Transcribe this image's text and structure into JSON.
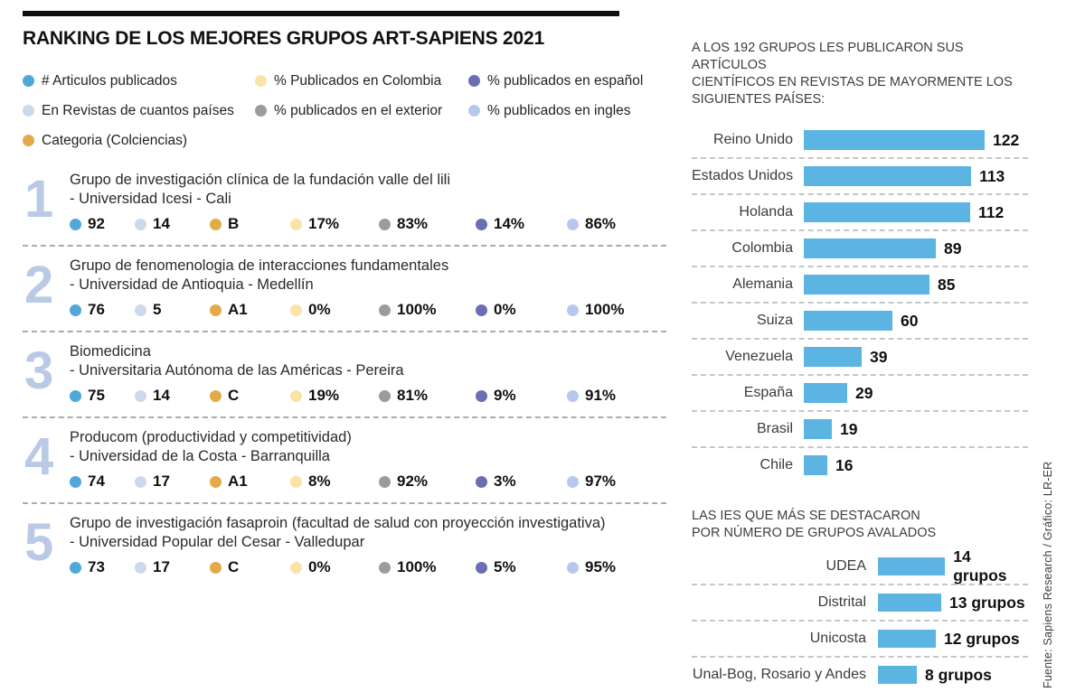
{
  "page_title": "RANKING DE LOS MEJORES GRUPOS ART-SAPIENS 2021",
  "colors": {
    "bar_blue": "#5bb4e2",
    "rank_number_blue": "#b9c9e6",
    "top_rule_black": "#101010"
  },
  "legend": {
    "columns": [
      [
        {
          "label": "# Articulos publicados",
          "color": "#4fa7da"
        },
        {
          "label": "En Revistas de cuantos países",
          "color": "#ccd9ec"
        },
        {
          "label": "Categoria (Colciencias)",
          "color": "#e2ab47"
        }
      ],
      [
        {
          "label": "% Publicados en Colombia",
          "color": "#fae3a7"
        },
        {
          "label": "% publicados en el exterior",
          "color": "#9b9b9d"
        }
      ],
      [
        {
          "label": "% publicados en español",
          "color": "#6a6eb3"
        },
        {
          "label": "% publicados en ingles",
          "color": "#b7c8ee"
        }
      ]
    ]
  },
  "chart_data": [
    {
      "id": "countries",
      "type": "bar",
      "orientation": "horizontal",
      "title": "A LOS 192 GRUPOS LES PUBLICARON SUS ARTÍCULOS CIENTÍFICOS EN REVISTAS DE MAYORMENTE LOS SIGUIENTES PAÍSES:",
      "title_lines": [
        "A LOS 192 GRUPOS LES PUBLICARON SUS ARTÍCULOS",
        "CIENTÍFICOS EN REVISTAS DE MAYORMENTE LOS",
        "SIGUIENTES PAÍSES:"
      ],
      "categories": [
        "Reino Unido",
        "Estados Unidos",
        "Holanda",
        "Colombia",
        "Alemania",
        "Suiza",
        "Venezuela",
        "España",
        "Brasil",
        "Chile"
      ],
      "values": [
        122,
        113,
        112,
        89,
        85,
        60,
        39,
        29,
        19,
        16
      ],
      "xlim": [
        0,
        122
      ],
      "grid": false,
      "legend_position": "none",
      "bar_color": "#5bb4e2"
    },
    {
      "id": "ies",
      "type": "bar",
      "orientation": "horizontal",
      "title": "LAS IES QUE MÁS SE DESTACARON POR NÚMERO DE GRUPOS AVALADOS",
      "title_lines": [
        "LAS IES QUE MÁS SE DESTACARON",
        "POR NÚMERO DE GRUPOS AVALADOS"
      ],
      "categories": [
        "UDEA",
        "Distrital",
        "Unicosta",
        "Unal-Bog, Rosario y Andes"
      ],
      "values": [
        14,
        13,
        12,
        8
      ],
      "value_labels": [
        "14 grupos",
        "13 grupos",
        "12 grupos",
        "8 grupos"
      ],
      "xlim": [
        0,
        14
      ],
      "grid": false,
      "legend_position": "none",
      "bar_color": "#5bb4e2"
    },
    {
      "id": "ranking",
      "type": "table",
      "title": "RANKING DE LOS MEJORES GRUPOS ART-SAPIENS 2021",
      "columns": [
        "# Articulos publicados",
        "En Revistas de cuantos países",
        "Categoria (Colciencias)",
        "% Publicados en Colombia",
        "% publicados en el exterior",
        "% publicados en español",
        "% publicados en ingles"
      ],
      "rows": [
        {
          "rank": "1",
          "name": "Grupo de investigación clínica de la fundación valle del lili",
          "institution": "- Universidad Icesi - Cali",
          "values": [
            "92",
            "14",
            "B",
            "17%",
            "83%",
            "14%",
            "86%"
          ]
        },
        {
          "rank": "2",
          "name": "Grupo de fenomenologia de interacciones fundamentales",
          "institution": "- Universidad de Antioquia - Medellín",
          "values": [
            "76",
            "5",
            "A1",
            "0%",
            "100%",
            "0%",
            "100%"
          ]
        },
        {
          "rank": "3",
          "name": "Biomedicina",
          "institution": "- Universitaria Autónoma de las Américas - Pereira",
          "values": [
            "75",
            "14",
            "C",
            "19%",
            "81%",
            "9%",
            "91%"
          ]
        },
        {
          "rank": "4",
          "name": "Producom (productividad y competitividad)",
          "institution": "- Universidad de la Costa - Barranquilla",
          "values": [
            "74",
            "17",
            "A1",
            "8%",
            "92%",
            "3%",
            "97%"
          ]
        },
        {
          "rank": "5",
          "name": "Grupo de investigación fasaproin (facultad de salud con proyección investigativa)",
          "institution": "- Universidad Popular del Cesar - Valledupar",
          "values": [
            "73",
            "17",
            "C",
            "0%",
            "100%",
            "5%",
            "95%"
          ]
        }
      ]
    }
  ],
  "source_credit": "Fuente: Sapiens Research / Gráfico: LR-ER"
}
